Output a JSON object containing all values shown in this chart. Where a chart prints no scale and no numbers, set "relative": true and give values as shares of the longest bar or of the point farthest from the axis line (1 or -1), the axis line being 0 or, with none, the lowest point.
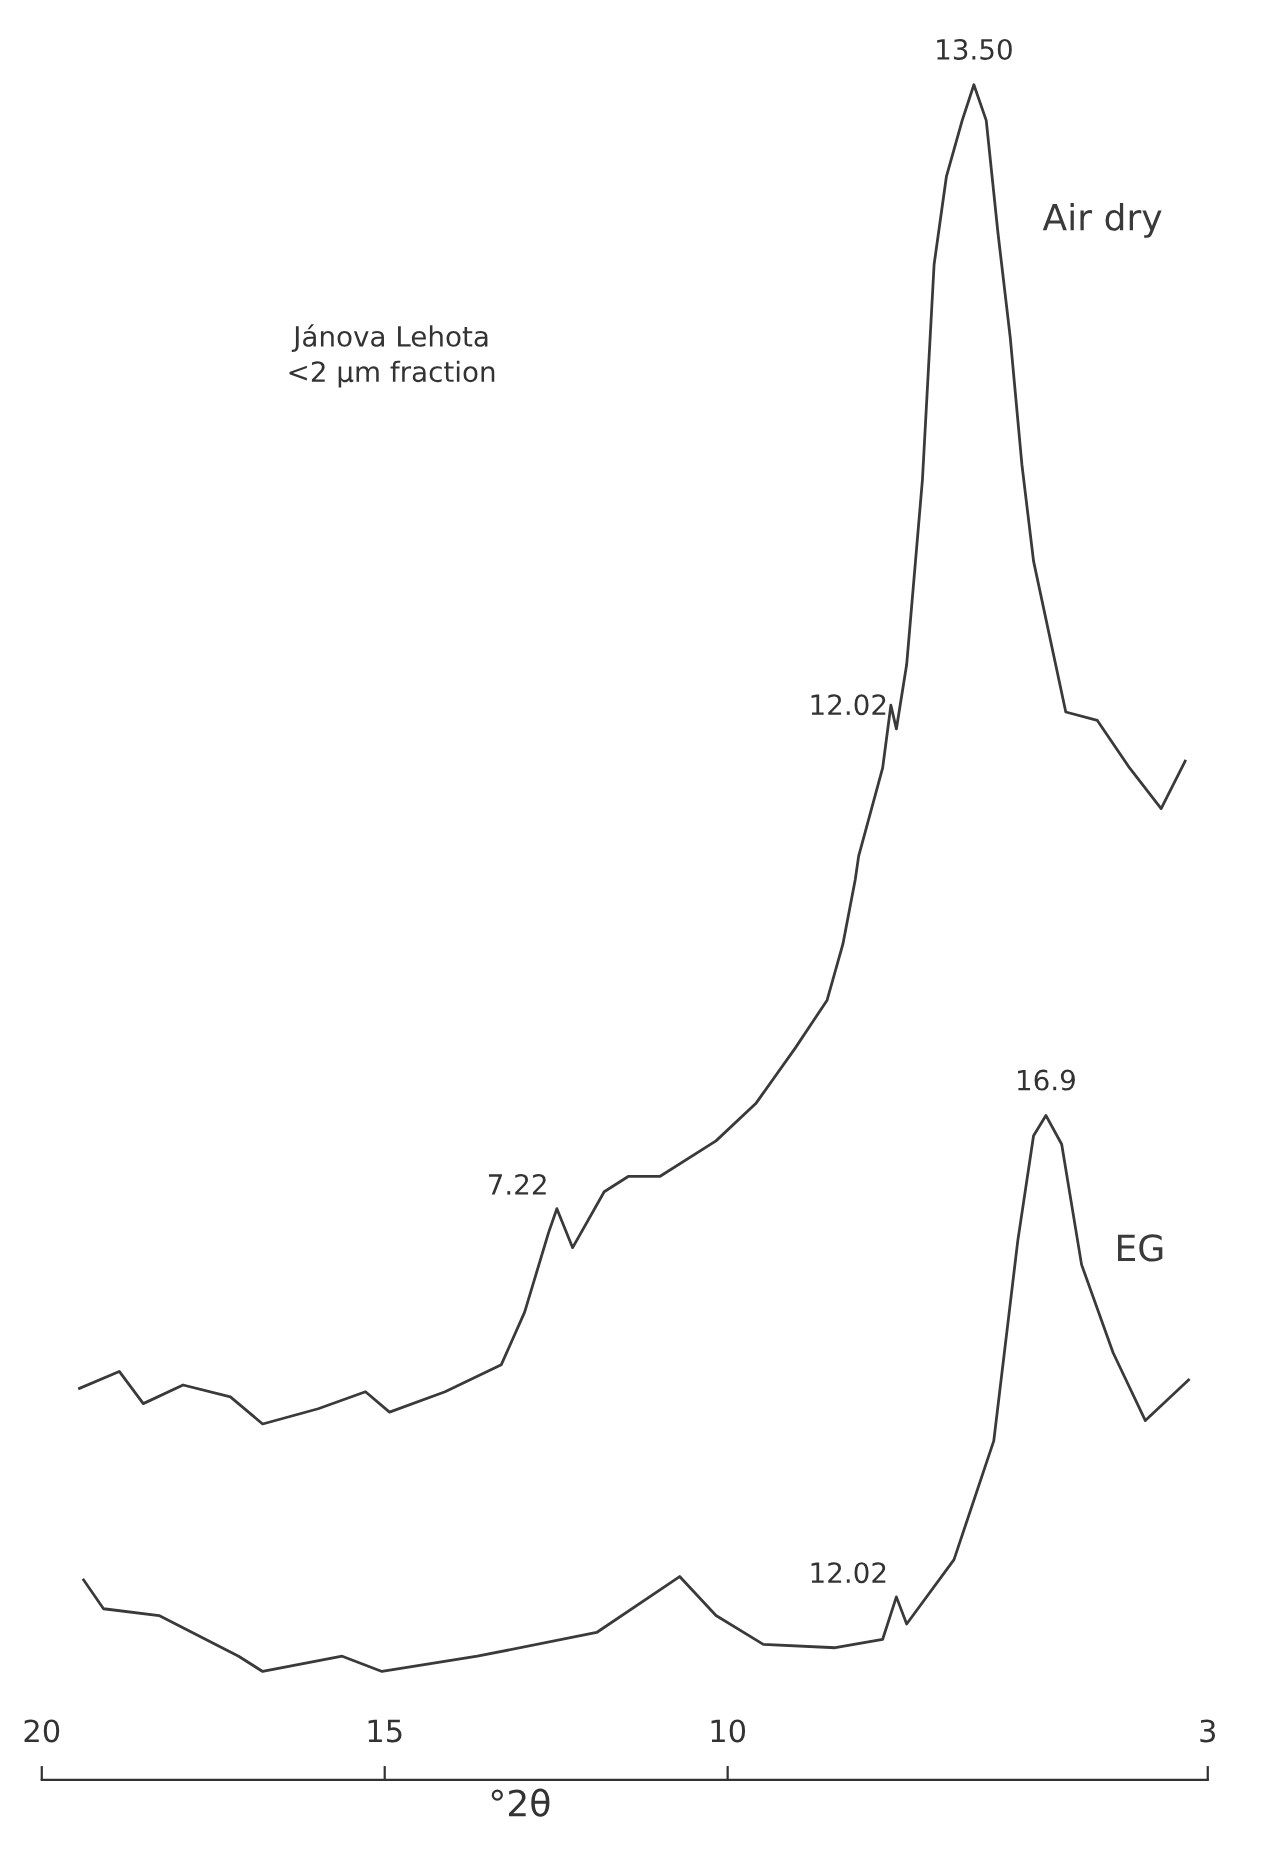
{
  "chart_data": {
    "type": "line",
    "relative": true,
    "xlabel": "°2θ",
    "xlim": [
      20,
      3
    ],
    "xticks": [
      20,
      15,
      10,
      3
    ],
    "tick_labels": "x",
    "grid": false,
    "legend": false,
    "marker": "none",
    "line_style": "solid",
    "annotations": [
      "Jánova Lehota\n<2 µm fraction",
      {
        "text": "13.50",
        "x": 6.41,
        "y": 1
      },
      {
        "text": "12.02",
        "x": 7.54,
        "y": 0.62
      },
      {
        "text": "7.22",
        "x": 12.49,
        "y": 0.337
      },
      {
        "text": "16.9",
        "x": 5.36,
        "y": 0.392
      },
      {
        "text": "12.02",
        "x": 7.54,
        "y": 0.108
      }
    ],
    "series": [
      {
        "name": "Air dry",
        "color": "#3a3a3a",
        "x": [
          19.45,
          18.87,
          18.52,
          17.94,
          17.25,
          16.78,
          15.97,
          15.28,
          14.93,
          14.12,
          13.3,
          12.96,
          12.61,
          12.49,
          12.26,
          11.8,
          11.45,
          10.99,
          10.17,
          9.59,
          9.01,
          8.55,
          8.32,
          8.14,
          8.09,
          7.74,
          7.62,
          7.54,
          7.39,
          7.16,
          6.99,
          6.81,
          6.58,
          6.41,
          6.23,
          6.06,
          5.88,
          5.71,
          5.54,
          5.07,
          4.61,
          4.14,
          3.68,
          3.33
        ],
        "values": [
          0.231,
          0.241,
          0.222,
          0.233,
          0.226,
          0.21,
          0.219,
          0.229,
          0.217,
          0.229,
          0.245,
          0.276,
          0.323,
          0.337,
          0.314,
          0.347,
          0.356,
          0.356,
          0.377,
          0.399,
          0.432,
          0.46,
          0.493,
          0.531,
          0.545,
          0.597,
          0.634,
          0.62,
          0.658,
          0.767,
          0.894,
          0.946,
          0.979,
          1,
          0.979,
          0.913,
          0.851,
          0.776,
          0.719,
          0.63,
          0.625,
          0.597,
          0.573,
          0.601
        ]
      },
      {
        "name": "EG",
        "color": "#3a3a3a",
        "x": [
          19.39,
          19.1,
          18.29,
          17.13,
          16.78,
          15.62,
          15.04,
          13.65,
          11.91,
          10.7,
          10.17,
          9.48,
          8.43,
          7.74,
          7.54,
          7.39,
          6.7,
          6.12,
          5.77,
          5.54,
          5.36,
          5.13,
          4.84,
          4.38,
          3.91,
          3.28
        ],
        "values": [
          0.118,
          0.101,
          0.097,
          0.073,
          0.064,
          0.073,
          0.064,
          0.073,
          0.087,
          0.12,
          0.097,
          0.08,
          0.078,
          0.083,
          0.108,
          0.092,
          0.13,
          0.2,
          0.318,
          0.38,
          0.392,
          0.375,
          0.304,
          0.252,
          0.212,
          0.236
        ]
      }
    ]
  }
}
